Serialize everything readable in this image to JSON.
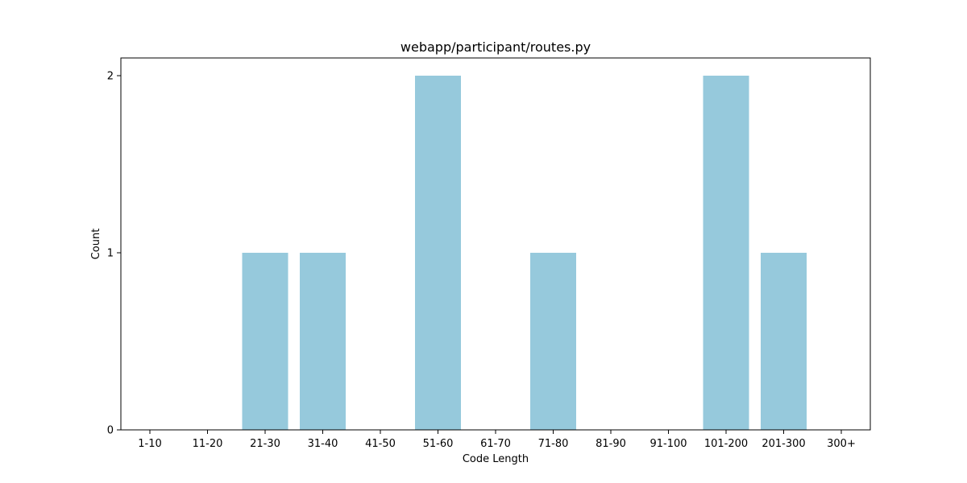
{
  "chart_data": {
    "type": "bar",
    "title": "webapp/participant/routes.py",
    "xlabel": "Code Length",
    "ylabel": "Count",
    "categories": [
      "1-10",
      "11-20",
      "21-30",
      "31-40",
      "41-50",
      "51-60",
      "61-70",
      "71-80",
      "81-90",
      "91-100",
      "101-200",
      "201-300",
      "300+"
    ],
    "values": [
      0,
      0,
      1,
      1,
      0,
      2,
      0,
      1,
      0,
      0,
      2,
      1,
      0
    ],
    "yticks": [
      0,
      1,
      2
    ],
    "ylim": [
      0,
      2.1
    ],
    "grid": false,
    "bar_color": "#96c9dc",
    "axis_color": "#000000"
  }
}
